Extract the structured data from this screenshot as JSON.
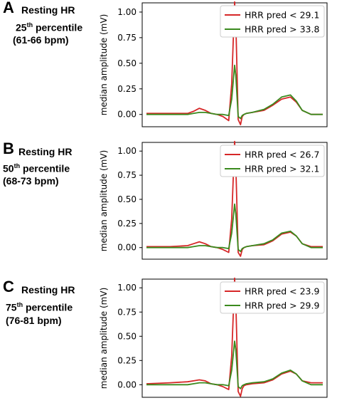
{
  "panels": [
    {
      "letter": "A",
      "line1": "Resting HR",
      "ordinal": "25",
      "ordinal_suffix": "th",
      "line2_rest": " percentile",
      "line3": "(61-66 bpm)"
    },
    {
      "letter": "B",
      "line1": "Resting HR",
      "ordinal": "50",
      "ordinal_suffix": "th",
      "line2_rest": " percentile",
      "line3": "(68-73 bpm)"
    },
    {
      "letter": "C",
      "line1": "Resting HR",
      "ordinal": "75",
      "ordinal_suffix": "th",
      "line2_rest": " percentile",
      "line3": "(76-81 bpm)"
    }
  ],
  "colors": {
    "red": "#d62728",
    "green": "#3a8a1e"
  },
  "chart_data": [
    {
      "type": "line",
      "ylabel": "median amplitude (mV)",
      "yticks": [
        "0.00",
        "0.25",
        "0.50",
        "0.75",
        "1.00"
      ],
      "ylim": [
        -0.12,
        1.09
      ],
      "x": [
        0,
        40,
        70,
        80,
        90,
        100,
        110,
        120,
        130,
        140,
        145,
        150,
        152,
        156,
        160,
        163,
        166,
        170,
        180,
        200,
        215,
        230,
        245,
        255,
        265,
        280,
        300
      ],
      "legend_position": "top-right",
      "series": [
        {
          "name": "HRR pred < 29.1",
          "color": "red",
          "values": [
            0.01,
            0.01,
            0.01,
            0.03,
            0.06,
            0.04,
            0.01,
            0.0,
            -0.02,
            -0.06,
            0.3,
            1.1,
            0.9,
            -0.05,
            -0.1,
            -0.02,
            0.0,
            0.01,
            0.02,
            0.04,
            0.09,
            0.15,
            0.17,
            0.12,
            0.04,
            0.0,
            0.0
          ]
        },
        {
          "name": "HRR pred > 33.8",
          "color": "green",
          "values": [
            0.0,
            0.0,
            0.0,
            0.01,
            0.02,
            0.02,
            0.01,
            0.0,
            0.0,
            -0.01,
            0.15,
            0.48,
            0.38,
            -0.02,
            -0.04,
            -0.01,
            0.0,
            0.01,
            0.02,
            0.05,
            0.1,
            0.17,
            0.19,
            0.13,
            0.04,
            0.0,
            0.0
          ]
        }
      ]
    },
    {
      "type": "line",
      "ylabel": "median amplitude (mV)",
      "yticks": [
        "0.00",
        "0.25",
        "0.50",
        "0.75",
        "1.00"
      ],
      "ylim": [
        -0.12,
        1.09
      ],
      "x": [
        0,
        40,
        70,
        80,
        90,
        100,
        110,
        120,
        130,
        140,
        145,
        150,
        152,
        156,
        160,
        163,
        166,
        170,
        180,
        200,
        215,
        230,
        245,
        255,
        265,
        280,
        300
      ],
      "legend_position": "top-right",
      "series": [
        {
          "name": "HRR pred < 26.7",
          "color": "red",
          "values": [
            0.01,
            0.01,
            0.02,
            0.04,
            0.06,
            0.04,
            0.01,
            0.0,
            -0.02,
            -0.05,
            0.3,
            1.1,
            0.85,
            -0.05,
            -0.09,
            -0.02,
            0.0,
            0.01,
            0.02,
            0.03,
            0.07,
            0.14,
            0.16,
            0.12,
            0.04,
            0.01,
            0.01
          ]
        },
        {
          "name": "HRR pred > 32.1",
          "color": "green",
          "values": [
            0.0,
            0.0,
            0.0,
            0.01,
            0.02,
            0.02,
            0.01,
            0.0,
            0.0,
            -0.01,
            0.15,
            0.45,
            0.35,
            -0.02,
            -0.04,
            -0.01,
            0.0,
            0.01,
            0.02,
            0.04,
            0.08,
            0.15,
            0.17,
            0.12,
            0.04,
            0.0,
            0.0
          ]
        }
      ]
    },
    {
      "type": "line",
      "ylabel": "median amplitude (mV)",
      "yticks": [
        "0.00",
        "0.25",
        "0.50",
        "0.75",
        "1.00"
      ],
      "ylim": [
        -0.13,
        1.09
      ],
      "x": [
        0,
        40,
        70,
        80,
        90,
        100,
        110,
        120,
        130,
        140,
        145,
        150,
        152,
        156,
        160,
        163,
        166,
        170,
        180,
        200,
        215,
        230,
        245,
        255,
        265,
        280,
        300
      ],
      "legend_position": "top-right",
      "series": [
        {
          "name": "HRR pred < 23.9",
          "color": "red",
          "values": [
            0.01,
            0.02,
            0.03,
            0.04,
            0.05,
            0.04,
            0.01,
            0.0,
            -0.02,
            -0.05,
            0.3,
            1.1,
            0.85,
            -0.07,
            -0.12,
            -0.04,
            -0.01,
            0.0,
            0.01,
            0.02,
            0.05,
            0.11,
            0.14,
            0.11,
            0.04,
            0.02,
            0.02
          ]
        },
        {
          "name": "HRR pred > 29.9",
          "color": "green",
          "values": [
            0.0,
            0.0,
            0.0,
            0.01,
            0.02,
            0.02,
            0.01,
            0.0,
            0.0,
            -0.01,
            0.15,
            0.45,
            0.36,
            -0.02,
            -0.04,
            -0.01,
            0.0,
            0.01,
            0.02,
            0.03,
            0.06,
            0.12,
            0.15,
            0.11,
            0.04,
            0.0,
            0.0
          ]
        }
      ]
    }
  ]
}
